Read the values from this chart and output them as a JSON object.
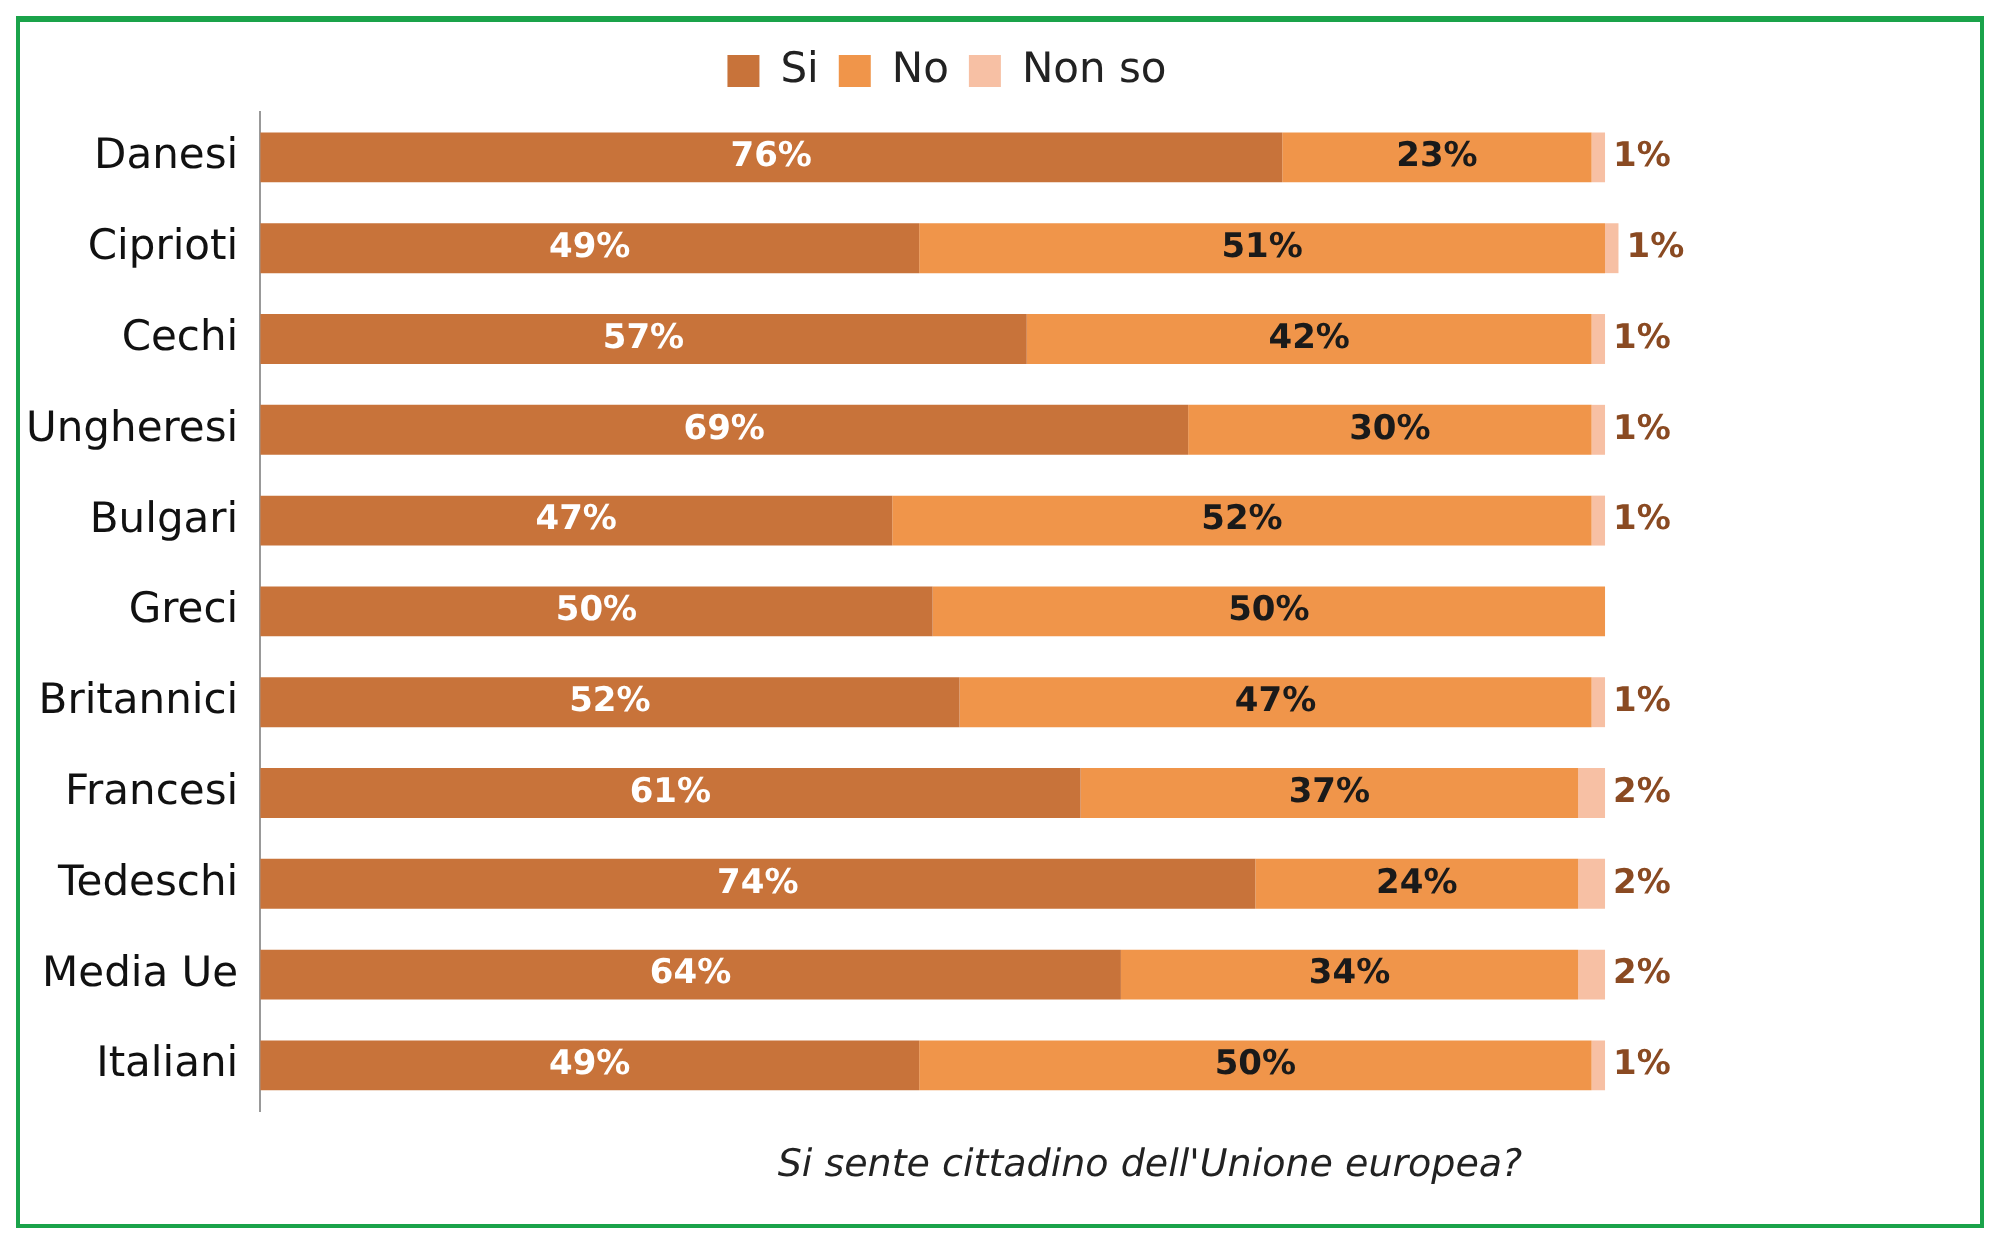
{
  "chart_data": {
    "type": "bar",
    "orientation": "horizontal",
    "stacked": true,
    "legend": "top",
    "tick_labels": "y",
    "categories": [
      "Danesi",
      "Ciprioti",
      "Cechi",
      "Ungheresi",
      "Bulgari",
      "Greci",
      "Britannici",
      "Francesi",
      "Tedeschi",
      "Media Ue",
      "Italiani"
    ],
    "series": [
      {
        "name": "Si",
        "color": "#c8733a",
        "values": [
          76,
          49,
          57,
          69,
          47,
          50,
          52,
          61,
          74,
          64,
          49
        ],
        "value_labels": [
          "76%",
          "49%",
          "57%",
          "69%",
          "47%",
          "50%",
          "52%",
          "61%",
          "74%",
          "64%",
          "49%"
        ]
      },
      {
        "name": "No",
        "color": "#f0954a",
        "values": [
          23,
          51,
          42,
          30,
          52,
          50,
          47,
          37,
          24,
          34,
          50
        ],
        "value_labels": [
          "23%",
          "51%",
          "42%",
          "30%",
          "52%",
          "50%",
          "47%",
          "37%",
          "24%",
          "34%",
          "50%"
        ]
      },
      {
        "name": "Non so",
        "color": "#f7c0a4",
        "values": [
          1,
          1,
          1,
          1,
          1,
          null,
          1,
          2,
          2,
          2,
          1
        ],
        "value_labels": [
          "1%",
          "1%",
          "1%",
          "1%",
          "1%",
          null,
          "1%",
          "2%",
          "2%",
          "2%",
          "1%"
        ]
      }
    ],
    "annotations": [
      "Si sente cittadino dell'Unione europea?"
    ]
  }
}
